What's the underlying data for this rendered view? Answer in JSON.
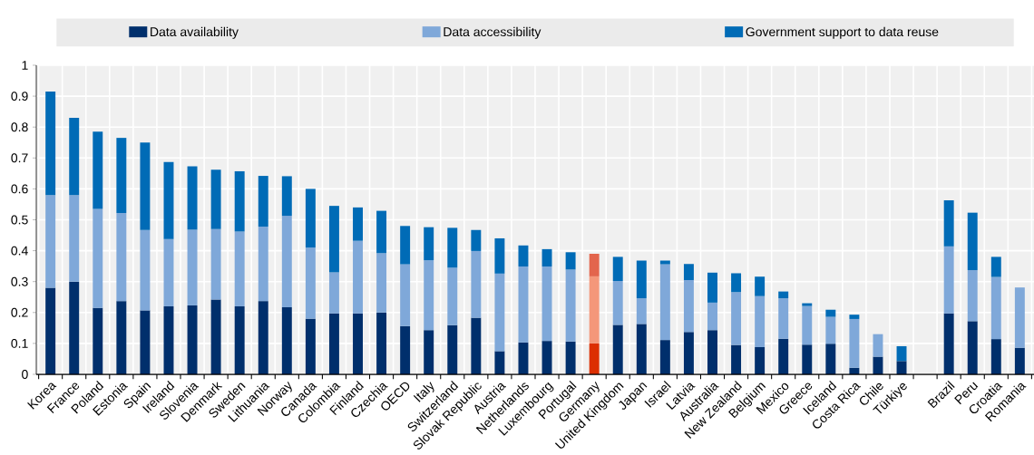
{
  "chart_data": {
    "type": "bar",
    "stacked": true,
    "grid": true,
    "legend": "top",
    "categories": [
      "Korea",
      "France",
      "Poland",
      "Estonia",
      "Spain",
      "Ireland",
      "Slovenia",
      "Denmark",
      "Sweden",
      "Lithuania",
      "Norway",
      "Canada",
      "Colombia",
      "Finland",
      "Czechia",
      "OECD",
      "Italy",
      "Switzerland",
      "Slovak Republic",
      "Austria",
      "Netherlands",
      "Luxembourg",
      "Portugal",
      "Germany",
      "United Kingdom",
      "Japan",
      "Israel",
      "Latvia",
      "Australia",
      "New Zealand",
      "Belgium",
      "Mexico",
      "Greece",
      "Iceland",
      "Costa Rica",
      "Chile",
      "Türkiye",
      null,
      "Brazil",
      "Peru",
      "Croatia",
      "Romania"
    ],
    "ylim": [
      0,
      1
    ],
    "yticks": [
      0,
      {
        "value": 0.1,
        "label": "0.1"
      },
      {
        "value": 0.2,
        "label": "0.2"
      },
      {
        "value": 0.3,
        "label": "0.3"
      },
      {
        "value": 0.4,
        "label": "0.4"
      },
      {
        "value": 0.5,
        "label": "0.5"
      },
      {
        "value": 0.6,
        "label": "0.6"
      },
      {
        "value": 0.7,
        "label": "0.7"
      },
      {
        "value": 0.8,
        "label": "0.8"
      },
      {
        "value": 0.9,
        "label": "0.9"
      },
      1
    ],
    "series": [
      {
        "name": "Data availability",
        "color": "#002f6c",
        "colors": [
          "#002f6c",
          "#002f6c",
          "#002f6c",
          "#002f6c",
          "#002f6c",
          "#002f6c",
          "#002f6c",
          "#002f6c",
          "#002f6c",
          "#002f6c",
          "#002f6c",
          "#002f6c",
          "#002f6c",
          "#002f6c",
          "#002f6c",
          "#002f6c",
          "#002f6c",
          "#002f6c",
          "#002f6c",
          "#002f6c",
          "#002f6c",
          "#002f6c",
          "#002f6c",
          "#dc2f02",
          "#002f6c",
          "#002f6c",
          "#002f6c",
          "#002f6c",
          "#002f6c",
          "#002f6c",
          "#002f6c",
          "#002f6c",
          "#002f6c",
          "#002f6c",
          "#002f6c",
          "#002f6c",
          "#002f6c",
          "#002f6c",
          "#002f6c",
          "#002f6c",
          "#002f6c",
          "#002f6c"
        ],
        "values": [
          0.28,
          0.3,
          0.215,
          0.237,
          0.207,
          0.22,
          0.223,
          0.242,
          0.22,
          0.237,
          0.217,
          0.18,
          0.197,
          0.197,
          0.2,
          0.156,
          0.143,
          0.159,
          0.183,
          0.075,
          0.103,
          0.108,
          0.106,
          0.1,
          0.16,
          0.163,
          0.111,
          0.137,
          0.143,
          0.095,
          0.088,
          0.115,
          0.096,
          0.099,
          0.021,
          0.057,
          0.043,
          null,
          0.197,
          0.172,
          0.114,
          0.086
        ]
      },
      {
        "name": "Data accessibility",
        "color": "#7fa8d9",
        "colors": [
          "#7fa8d9",
          "#7fa8d9",
          "#7fa8d9",
          "#7fa8d9",
          "#7fa8d9",
          "#7fa8d9",
          "#7fa8d9",
          "#7fa8d9",
          "#7fa8d9",
          "#7fa8d9",
          "#7fa8d9",
          "#7fa8d9",
          "#7fa8d9",
          "#7fa8d9",
          "#7fa8d9",
          "#7fa8d9",
          "#7fa8d9",
          "#7fa8d9",
          "#7fa8d9",
          "#7fa8d9",
          "#7fa8d9",
          "#7fa8d9",
          "#7fa8d9",
          "#f4977a",
          "#7fa8d9",
          "#7fa8d9",
          "#7fa8d9",
          "#7fa8d9",
          "#7fa8d9",
          "#7fa8d9",
          "#7fa8d9",
          "#7fa8d9",
          "#7fa8d9",
          "#7fa8d9",
          "#7fa8d9",
          "#7fa8d9",
          "#7fa8d9",
          "#7fa8d9",
          "#7fa8d9",
          "#7fa8d9",
          "#7fa8d9",
          "#7fa8d9"
        ],
        "values": [
          0.3,
          0.28,
          0.32,
          0.285,
          0.26,
          0.218,
          0.245,
          0.228,
          0.242,
          0.241,
          0.296,
          0.23,
          0.133,
          0.235,
          0.192,
          0.2,
          0.226,
          0.186,
          0.216,
          0.251,
          0.246,
          0.241,
          0.233,
          0.217,
          0.142,
          0.083,
          0.245,
          0.168,
          0.089,
          0.171,
          0.165,
          0.131,
          0.125,
          0.087,
          0.158,
          0.073,
          null,
          null,
          0.217,
          0.165,
          0.201,
          0.195
        ]
      },
      {
        "name": "Government support to data reuse",
        "color": "#006bb6",
        "colors": [
          "#006bb6",
          "#006bb6",
          "#006bb6",
          "#006bb6",
          "#006bb6",
          "#006bb6",
          "#006bb6",
          "#006bb6",
          "#006bb6",
          "#006bb6",
          "#006bb6",
          "#006bb6",
          "#006bb6",
          "#006bb6",
          "#006bb6",
          "#006bb6",
          "#006bb6",
          "#006bb6",
          "#006bb6",
          "#006bb6",
          "#006bb6",
          "#006bb6",
          "#006bb6",
          "#e3654d",
          "#006bb6",
          "#006bb6",
          "#006bb6",
          "#006bb6",
          "#006bb6",
          "#006bb6",
          "#006bb6",
          "#006bb6",
          "#006bb6",
          "#006bb6",
          "#006bb6",
          "#006bb6",
          "#006bb6",
          "#006bb6",
          "#006bb6",
          "#006bb6",
          "#006bb6",
          "#006bb6"
        ],
        "values": [
          0.335,
          0.25,
          0.25,
          0.243,
          0.283,
          0.249,
          0.205,
          0.192,
          0.195,
          0.164,
          0.128,
          0.19,
          0.215,
          0.108,
          0.137,
          0.124,
          0.107,
          0.129,
          0.068,
          0.114,
          0.068,
          0.056,
          0.056,
          0.073,
          0.078,
          0.122,
          0.012,
          0.052,
          0.097,
          0.061,
          0.063,
          0.022,
          0.009,
          0.023,
          0.014,
          null,
          0.048,
          null,
          0.149,
          0.186,
          0.065,
          null
        ]
      }
    ]
  }
}
